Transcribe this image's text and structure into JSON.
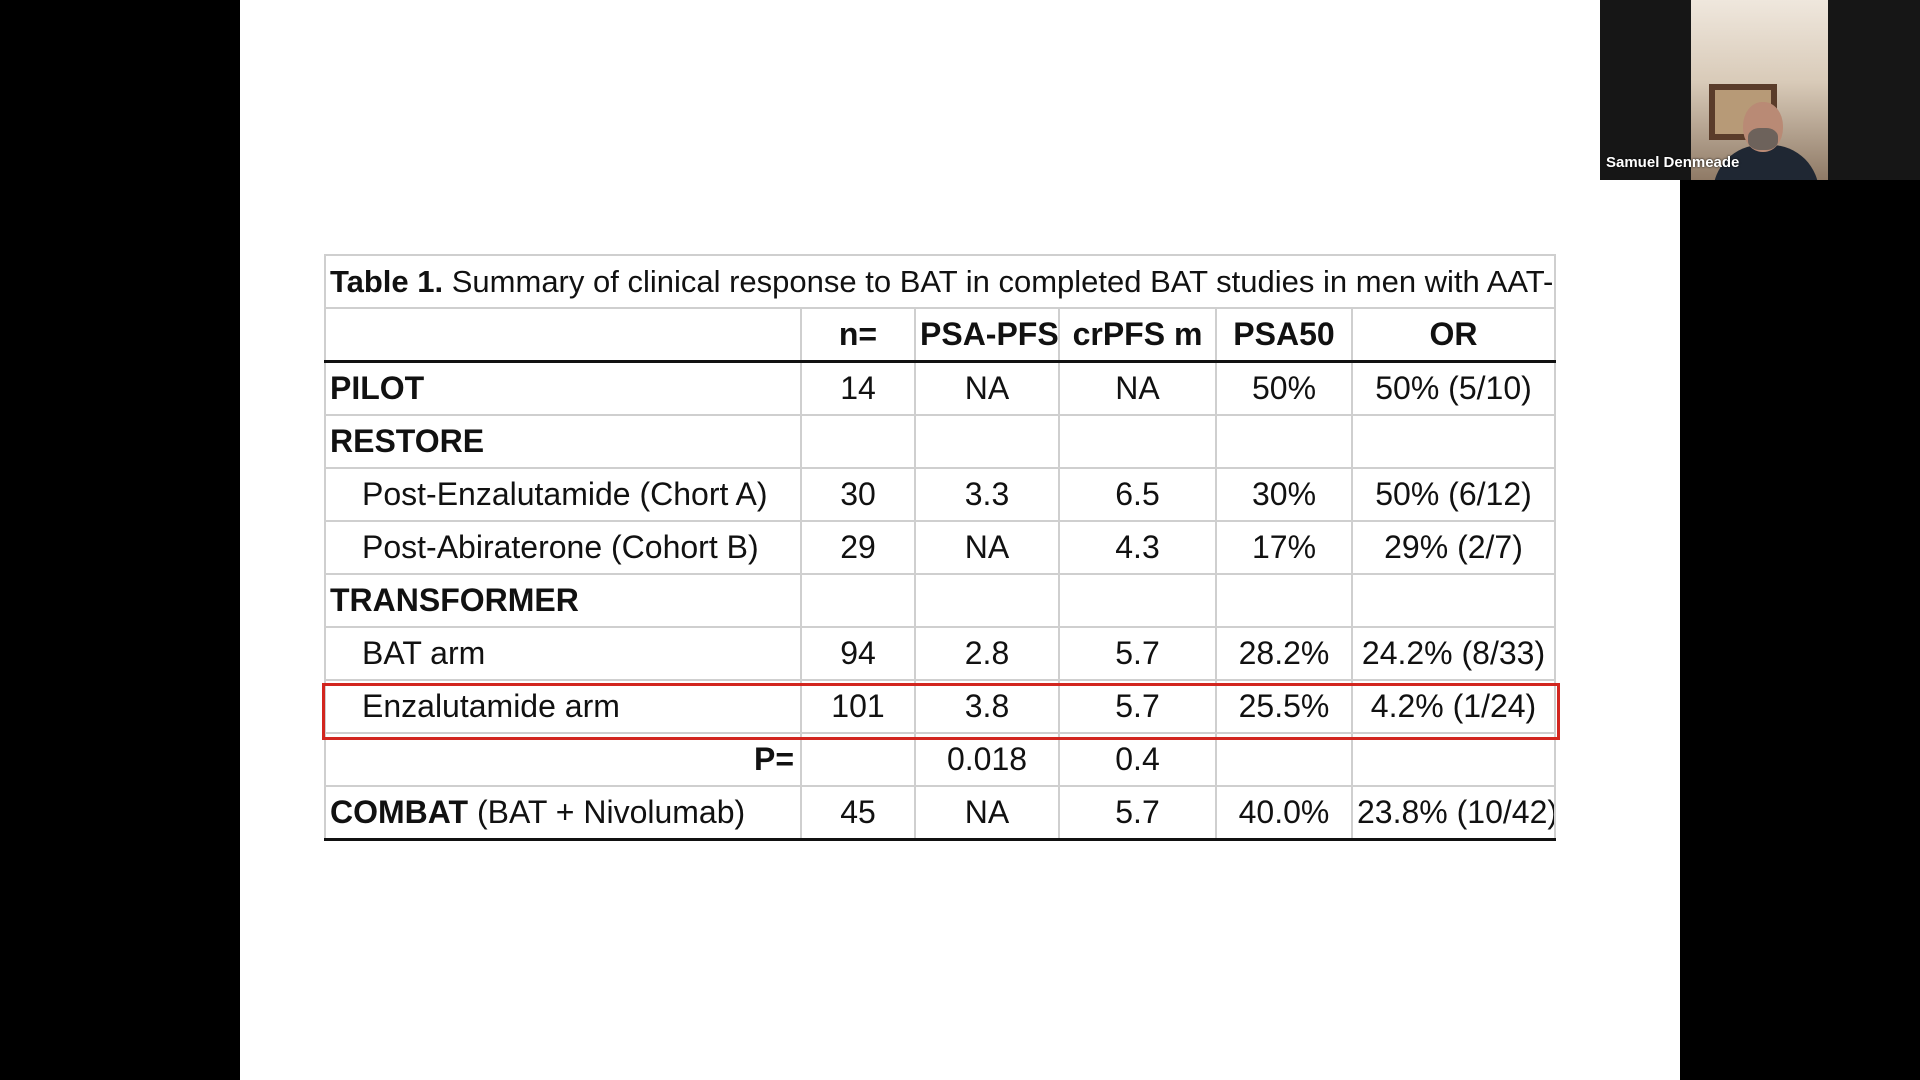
{
  "participant": {
    "name": "Samuel Denmeade"
  },
  "table": {
    "caption_bold": "Table 1.",
    "caption_rest": " Summary of clinical response to BAT in completed BAT studies in men with AAT-resistant PCa",
    "headers": [
      "",
      "n=",
      "PSA-PFS m",
      "crPFS m",
      "PSA50",
      "OR"
    ],
    "rows": [
      {
        "label": "PILOT",
        "values": [
          "14",
          "NA",
          "NA",
          "50%",
          "50% (5/10)"
        ]
      },
      {
        "label": "RESTORE",
        "values": [
          "",
          "",
          "",
          "",
          ""
        ]
      },
      {
        "label": "Post-Enzalutamide (Chort A)",
        "values": [
          "30",
          "3.3",
          "6.5",
          "30%",
          "50% (6/12)"
        ]
      },
      {
        "label": "Post-Abiraterone (Cohort B)",
        "values": [
          "29",
          "NA",
          "4.3",
          "17%",
          "29% (2/7)"
        ]
      },
      {
        "label": "TRANSFORMER",
        "values": [
          "",
          "",
          "",
          "",
          ""
        ]
      },
      {
        "label": "BAT arm",
        "values": [
          "94",
          "2.8",
          "5.7",
          "28.2%",
          "24.2% (8/33)"
        ]
      },
      {
        "label": "Enzalutamide arm",
        "values": [
          "101",
          "3.8",
          "5.7",
          "25.5%",
          "4.2% (1/24)"
        ]
      },
      {
        "label": "P=",
        "values": [
          "",
          "0.018",
          "0.4",
          "",
          ""
        ]
      },
      {
        "label_bold": "COMBAT",
        "label_rest": " (BAT + Nivolumab)",
        "values": [
          "45",
          "NA",
          "5.7",
          "40.0%",
          "23.8% (10/42)"
        ]
      }
    ]
  },
  "colors": {
    "highlight": "#d2261f",
    "slide_background": "#ffffff",
    "screen_background": "#000000"
  }
}
